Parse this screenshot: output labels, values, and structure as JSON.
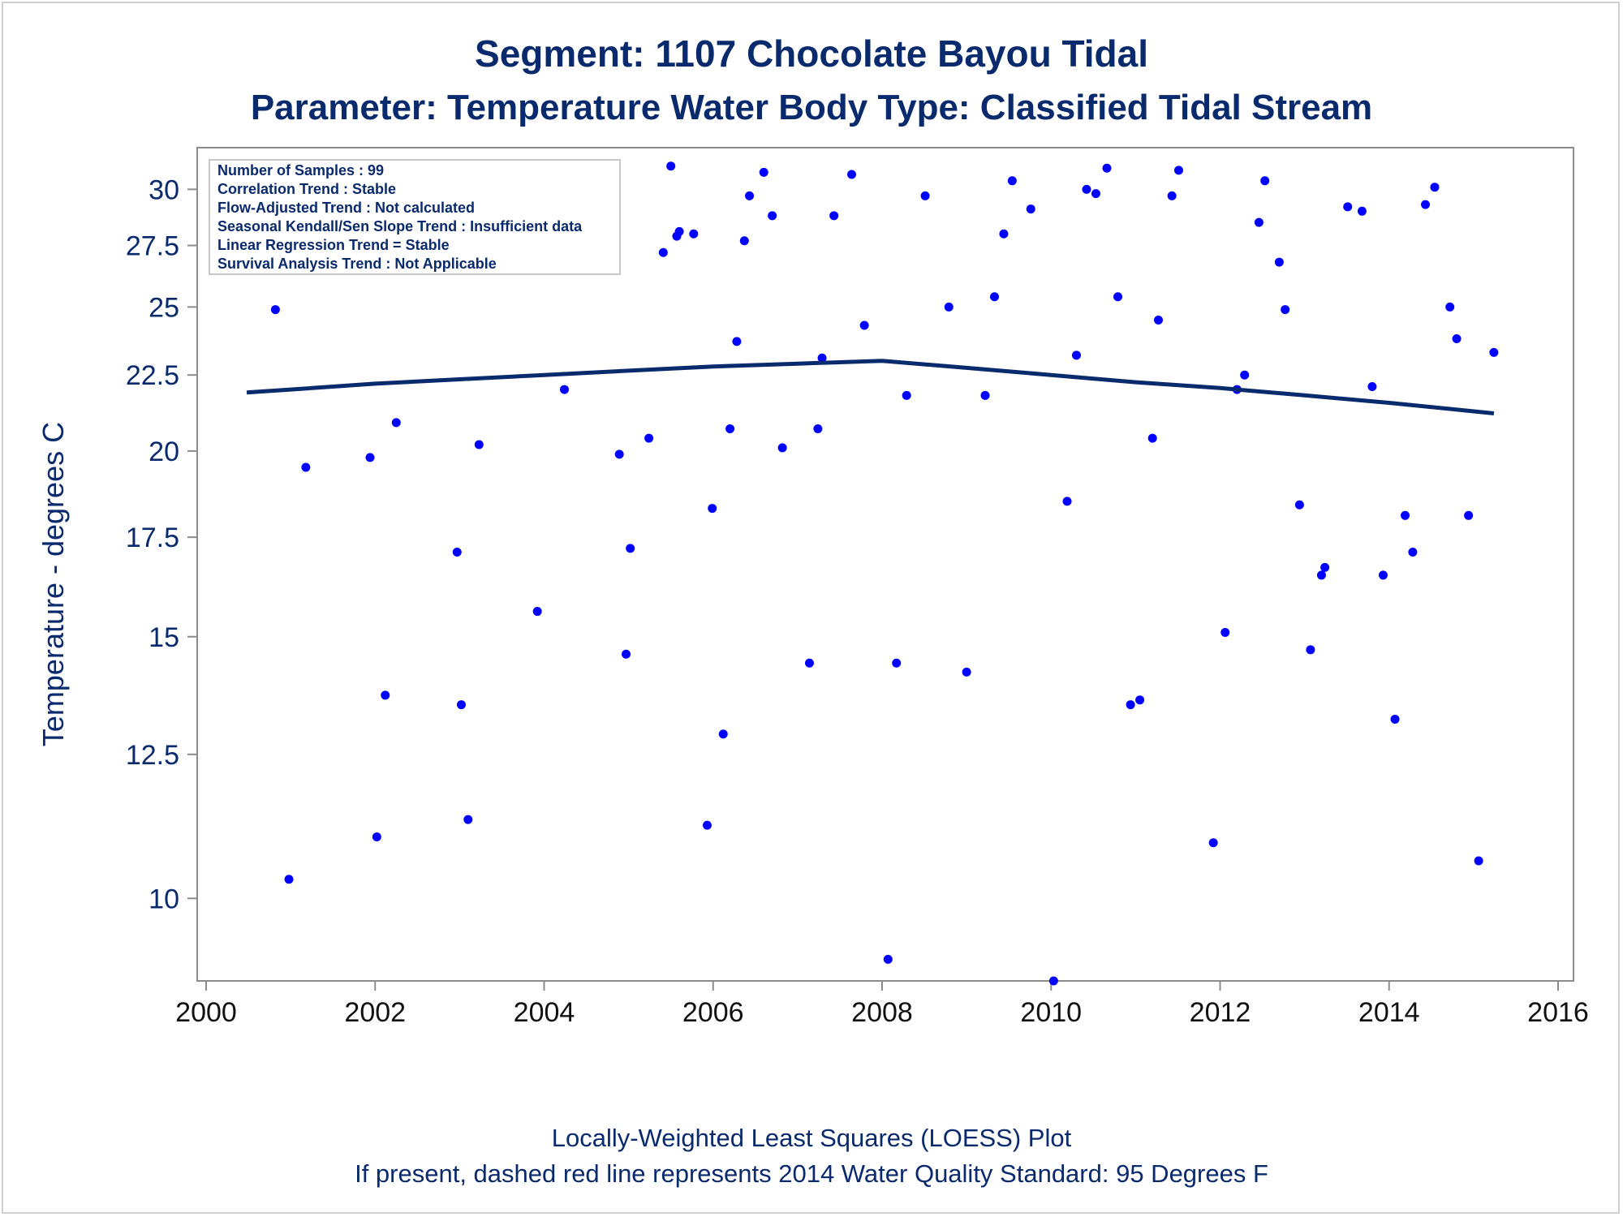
{
  "chart_data": {
    "type": "scatter",
    "title": "Segment: 1107  Chocolate Bayou Tidal",
    "subtitle": "Parameter: Temperature   Water Body Type: Classified Tidal Stream",
    "xlabel": "",
    "ylabel": "Temperature - degrees C",
    "footnotes": [
      "Locally-Weighted Least Squares (LOESS) Plot",
      "If present, dashed red line represents 2014 Water Quality Standard: 95   Degrees F"
    ],
    "y_scale": "log",
    "xlim": [
      2000,
      2016
    ],
    "ylim": [
      8.8,
      32
    ],
    "x_ticks": [
      2000,
      2002,
      2004,
      2006,
      2008,
      2010,
      2012,
      2014,
      2016
    ],
    "x_tick_labels": [
      "2000",
      "2002",
      "2004",
      "2006",
      "2008",
      "2010",
      "2012",
      "2014",
      "2016"
    ],
    "y_ticks": [
      10,
      12.5,
      15,
      17.5,
      20,
      22.5,
      25,
      27.5,
      30
    ],
    "y_tick_labels": [
      "10",
      "12.5",
      "15",
      "17.5",
      "20",
      "22.5",
      "25",
      "27.5",
      "30"
    ],
    "grid": false,
    "legend_position": "top-left",
    "inset_text": [
      "Number of Samples : 99",
      "Correlation Trend : Stable",
      "Flow-Adjusted Trend : Not calculated",
      "Seasonal Kendall/Sen Slope Trend : Insufficient data",
      "Linear Regression Trend = Stable",
      "Survival Analysis Trend : Not Applicable"
    ],
    "colors": {
      "points": "#0000ff",
      "loess": "#0a2a6e",
      "text": "#0a2a6e",
      "axis": "#8c8c8c"
    },
    "series": [
      {
        "kind": "points",
        "x": [
          2000.48,
          2000.82,
          2000.98,
          2001.18,
          2001.5,
          2001.72,
          2001.94,
          2002.02,
          2002.12,
          2002.25,
          2002.43,
          2002.56,
          2002.77,
          2002.97,
          2003.02,
          2003.1,
          2003.23,
          2003.42,
          2003.58,
          2003.7,
          2003.92,
          2004.24,
          2004.69,
          2004.76,
          2004.89,
          2004.97,
          2005.02,
          2005.24,
          2005.41,
          2005.5,
          2005.57,
          2005.6,
          2005.77,
          2005.93,
          2005.99,
          2006.12,
          2006.2,
          2006.28,
          2006.37,
          2006.43,
          2006.6,
          2006.7,
          2006.82,
          2007.14,
          2007.24,
          2007.29,
          2007.43,
          2007.64,
          2007.79,
          2008.07,
          2008.17,
          2008.29,
          2008.51,
          2008.79,
          2009.0,
          2009.22,
          2009.33,
          2009.44,
          2009.54,
          2009.76,
          2010.03,
          2010.19,
          2010.3,
          2010.42,
          2010.53,
          2010.66,
          2010.79,
          2010.94,
          2011.05,
          2011.2,
          2011.27,
          2011.43,
          2011.51,
          2011.92,
          2012.06,
          2012.2,
          2012.29,
          2012.46,
          2012.53,
          2012.7,
          2012.77,
          2012.94,
          2013.07,
          2013.2,
          2013.24,
          2013.51,
          2013.68,
          2013.8,
          2013.93,
          2014.07,
          2014.19,
          2014.28,
          2014.43,
          2014.54,
          2014.72,
          2014.8,
          2014.94,
          2015.06,
          2015.24
        ],
        "y": [
          27.9,
          24.9,
          10.3,
          19.5,
          29.2,
          29.5,
          19.8,
          11.0,
          13.7,
          20.9,
          28.6,
          30.4,
          27.4,
          17.1,
          13.5,
          11.3,
          20.2,
          29.5,
          31.2,
          29.0,
          15.6,
          22.0,
          29.6,
          26.8,
          19.9,
          14.6,
          17.2,
          20.4,
          27.2,
          31.1,
          27.9,
          28.1,
          28.0,
          11.2,
          18.3,
          12.9,
          20.7,
          23.7,
          27.7,
          29.7,
          30.8,
          28.8,
          20.1,
          14.4,
          20.7,
          23.1,
          28.8,
          30.7,
          24.3,
          9.1,
          14.4,
          21.8,
          29.7,
          25.0,
          14.2,
          21.8,
          25.4,
          28.0,
          30.4,
          29.1,
          8.8,
          18.5,
          23.2,
          30.0,
          29.8,
          31.0,
          25.4,
          13.5,
          13.6,
          20.4,
          24.5,
          29.7,
          30.9,
          10.9,
          15.1,
          22.0,
          22.5,
          28.5,
          30.4,
          26.8,
          24.9,
          18.4,
          14.7,
          16.5,
          16.7,
          29.2,
          29.0,
          22.1,
          16.5,
          13.2,
          18.1,
          17.1,
          29.3,
          30.1,
          25.0,
          23.8,
          18.1,
          10.6,
          23.3
        ]
      },
      {
        "kind": "loess-line",
        "x": [
          2000.48,
          2001,
          2002,
          2003,
          2004,
          2005,
          2006,
          2007,
          2008,
          2009,
          2010,
          2011,
          2012,
          2013,
          2014,
          2015.24
        ],
        "y": [
          21.9,
          22.0,
          22.2,
          22.35,
          22.5,
          22.65,
          22.8,
          22.9,
          23.0,
          22.75,
          22.5,
          22.25,
          22.05,
          21.8,
          21.55,
          21.2
        ]
      }
    ]
  }
}
